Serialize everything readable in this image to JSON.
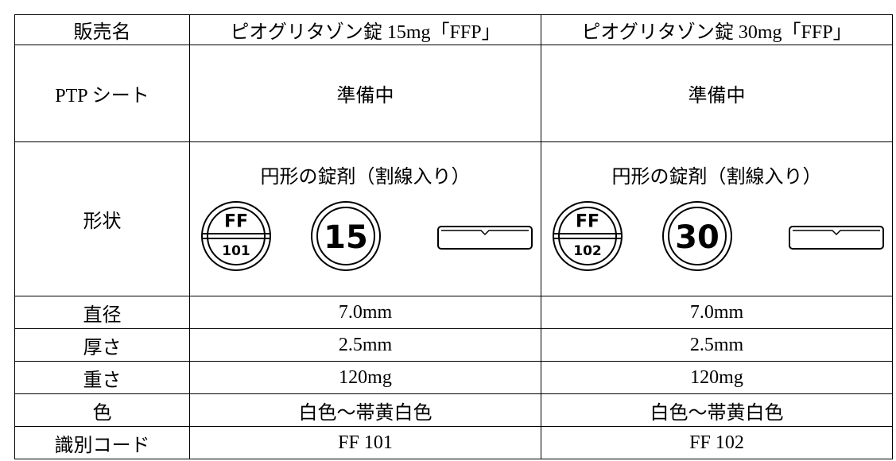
{
  "table": {
    "header": [
      "販売名",
      "ピオグリタゾン錠 15mg「FFP」",
      "ピオグリタゾン錠 30mg「FFP」"
    ],
    "rows": [
      [
        "PTP シート",
        "準備中",
        "準備中"
      ],
      [
        "形状",
        "円形の錠剤（割線入り）",
        "円形の錠剤（割線入り）"
      ],
      [
        "直径",
        "7.0mm",
        "7.0mm"
      ],
      [
        "厚さ",
        "2.5mm",
        "2.5mm"
      ],
      [
        "重さ",
        "120mg",
        "120mg"
      ],
      [
        "色",
        "白色～帯黄白色",
        "白色～帯黄白色"
      ],
      [
        "識別コード",
        "FF 101",
        "FF 102"
      ]
    ],
    "tablets": [
      {
        "top": "FF",
        "bottom": "101",
        "face": "15"
      },
      {
        "top": "FF",
        "bottom": "102",
        "face": "30"
      }
    ]
  }
}
